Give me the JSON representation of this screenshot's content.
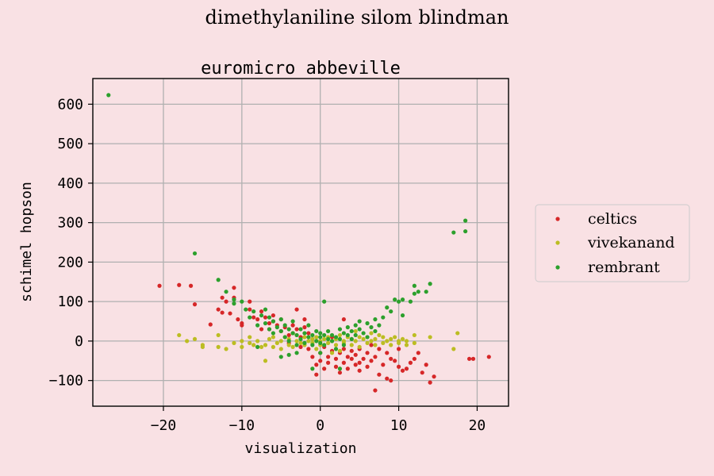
{
  "chart_data": {
    "type": "scatter",
    "suptitle": "dimethylaniline silom blindman",
    "title": "euromicro abbeville",
    "xlabel": "visualization",
    "ylabel": "schimel hopson",
    "xlim": [
      -29,
      24
    ],
    "ylim": [
      -165,
      665
    ],
    "xticks": [
      -20,
      -10,
      0,
      10,
      20
    ],
    "yticks": [
      -100,
      0,
      100,
      200,
      300,
      400,
      500,
      600
    ],
    "xtick_labels": [
      "−20",
      "−10",
      "0",
      "10",
      "20"
    ],
    "ytick_labels": [
      "−100",
      "0",
      "100",
      "200",
      "300",
      "400",
      "500",
      "600"
    ],
    "grid": true,
    "legend_position": "right",
    "background": "#f9e1e4",
    "series": [
      {
        "name": "celtics",
        "color": "#d62728",
        "points": [
          [
            -20.5,
            140
          ],
          [
            -18,
            142
          ],
          [
            -16.5,
            140
          ],
          [
            -16,
            93
          ],
          [
            -14,
            42
          ],
          [
            -13,
            80
          ],
          [
            -12.5,
            110
          ],
          [
            -12.5,
            72
          ],
          [
            -12,
            100
          ],
          [
            -11.5,
            70
          ],
          [
            -11,
            135
          ],
          [
            -11,
            110
          ],
          [
            -10.5,
            55
          ],
          [
            -10,
            45
          ],
          [
            -10,
            40
          ],
          [
            -9,
            100
          ],
          [
            -9,
            80
          ],
          [
            -8.5,
            60
          ],
          [
            -8,
            55
          ],
          [
            -7.5,
            75
          ],
          [
            -7,
            60
          ],
          [
            -6.5,
            45
          ],
          [
            -6.5,
            30
          ],
          [
            -6,
            65
          ],
          [
            -6,
            50
          ],
          [
            -5.5,
            40
          ],
          [
            -5,
            55
          ],
          [
            -5,
            25
          ],
          [
            -4.5,
            35
          ],
          [
            -4,
            15
          ],
          [
            -3.5,
            40
          ],
          [
            -3.5,
            20
          ],
          [
            -3,
            80
          ],
          [
            -3,
            30
          ],
          [
            -2.5,
            10
          ],
          [
            -2.5,
            -15
          ],
          [
            -2,
            35
          ],
          [
            -2,
            55
          ],
          [
            -1.5,
            20
          ],
          [
            -1.5,
            -20
          ],
          [
            -1,
            5
          ],
          [
            -1,
            -40
          ],
          [
            -0.5,
            -60
          ],
          [
            -0.5,
            -85
          ],
          [
            0,
            -30
          ],
          [
            0,
            -50
          ],
          [
            0.5,
            -70
          ],
          [
            0.5,
            -15
          ],
          [
            1,
            -40
          ],
          [
            1,
            -55
          ],
          [
            1.5,
            -25
          ],
          [
            2,
            -65
          ],
          [
            2,
            -45
          ],
          [
            2.5,
            -30
          ],
          [
            2.5,
            -80
          ],
          [
            3,
            -55
          ],
          [
            3,
            -20
          ],
          [
            3.5,
            -40
          ],
          [
            3.5,
            -70
          ],
          [
            4,
            -45
          ],
          [
            4,
            -25
          ],
          [
            4.5,
            -60
          ],
          [
            4.5,
            -35
          ],
          [
            5,
            -75
          ],
          [
            5,
            -55
          ],
          [
            5,
            -20
          ],
          [
            5.5,
            -45
          ],
          [
            6,
            -30
          ],
          [
            6,
            -65
          ],
          [
            6.5,
            -50
          ],
          [
            7,
            -40
          ],
          [
            7,
            -125
          ],
          [
            7.5,
            -20
          ],
          [
            7.5,
            -85
          ],
          [
            8,
            -60
          ],
          [
            8.5,
            -30
          ],
          [
            8.5,
            -95
          ],
          [
            9,
            -45
          ],
          [
            9,
            -100
          ],
          [
            9.5,
            -50
          ],
          [
            10,
            -20
          ],
          [
            10,
            -65
          ],
          [
            10.5,
            -75
          ],
          [
            11,
            -70
          ],
          [
            11.5,
            -55
          ],
          [
            12,
            -45
          ],
          [
            12.5,
            -30
          ],
          [
            13,
            -80
          ],
          [
            13.5,
            -60
          ],
          [
            14,
            -105
          ],
          [
            14.5,
            -90
          ],
          [
            19,
            -45
          ],
          [
            19.5,
            -45
          ],
          [
            21.5,
            -40
          ],
          [
            3,
            55
          ],
          [
            -4,
            -5
          ],
          [
            1.5,
            10
          ],
          [
            6.5,
            -10
          ],
          [
            -7.5,
            30
          ]
        ]
      },
      {
        "name": "vivekanand",
        "color": "#bcbd22",
        "points": [
          [
            -18,
            15
          ],
          [
            -17,
            0
          ],
          [
            -16,
            5
          ],
          [
            -15,
            -10
          ],
          [
            -15,
            -15
          ],
          [
            -13,
            15
          ],
          [
            -13,
            -15
          ],
          [
            -12,
            -20
          ],
          [
            -11,
            -5
          ],
          [
            -10,
            -15
          ],
          [
            -10,
            0
          ],
          [
            -9,
            -5
          ],
          [
            -9,
            10
          ],
          [
            -8.5,
            -10
          ],
          [
            -8,
            0
          ],
          [
            -7.5,
            -15
          ],
          [
            -7,
            -50
          ],
          [
            -7,
            -10
          ],
          [
            -6.5,
            5
          ],
          [
            -6,
            -15
          ],
          [
            -6,
            10
          ],
          [
            -5.5,
            -5
          ],
          [
            -5,
            -20
          ],
          [
            -5,
            0
          ],
          [
            -4.5,
            10
          ],
          [
            -4,
            -10
          ],
          [
            -4,
            5
          ],
          [
            -3.5,
            -15
          ],
          [
            -3,
            0
          ],
          [
            -3,
            15
          ],
          [
            -2.5,
            -5
          ],
          [
            -2,
            10
          ],
          [
            -2,
            -10
          ],
          [
            -1.5,
            0
          ],
          [
            -1,
            5
          ],
          [
            -1,
            -5
          ],
          [
            -0.5,
            10
          ],
          [
            0,
            0
          ],
          [
            0,
            -10
          ],
          [
            0.5,
            5
          ],
          [
            1,
            -5
          ],
          [
            1,
            10
          ],
          [
            1.5,
            0
          ],
          [
            2,
            -10
          ],
          [
            2,
            5
          ],
          [
            2.5,
            15
          ],
          [
            3,
            0
          ],
          [
            3,
            -5
          ],
          [
            3.5,
            10
          ],
          [
            4,
            -10
          ],
          [
            4,
            5
          ],
          [
            4.5,
            0
          ],
          [
            5,
            10
          ],
          [
            5,
            -15
          ],
          [
            5.5,
            5
          ],
          [
            6,
            -5
          ],
          [
            6,
            10
          ],
          [
            6.5,
            0
          ],
          [
            7,
            -10
          ],
          [
            7,
            5
          ],
          [
            7.5,
            15
          ],
          [
            8,
            -5
          ],
          [
            8,
            10
          ],
          [
            8.5,
            0
          ],
          [
            9,
            -10
          ],
          [
            9,
            5
          ],
          [
            9.5,
            10
          ],
          [
            10,
            -5
          ],
          [
            10,
            0
          ],
          [
            10.5,
            5
          ],
          [
            11,
            -10
          ],
          [
            11,
            0
          ],
          [
            12,
            -5
          ],
          [
            12,
            15
          ],
          [
            14,
            10
          ],
          [
            17,
            -20
          ],
          [
            17.5,
            20
          ],
          [
            -0.5,
            -20
          ],
          [
            2.5,
            -25
          ],
          [
            -3.5,
            20
          ],
          [
            6.5,
            20
          ],
          [
            4.5,
            25
          ],
          [
            1.5,
            -30
          ]
        ]
      },
      {
        "name": "rembrant",
        "color": "#2ca02c",
        "points": [
          [
            -27,
            623
          ],
          [
            -16,
            222
          ],
          [
            -13,
            155
          ],
          [
            -12,
            125
          ],
          [
            -11,
            105
          ],
          [
            -11,
            95
          ],
          [
            -10,
            100
          ],
          [
            -9.5,
            80
          ],
          [
            -9,
            60
          ],
          [
            -8.5,
            75
          ],
          [
            -8,
            40
          ],
          [
            -7.5,
            65
          ],
          [
            -7,
            80
          ],
          [
            -7,
            45
          ],
          [
            -6.5,
            30
          ],
          [
            -6.5,
            60
          ],
          [
            -6,
            20
          ],
          [
            -6,
            50
          ],
          [
            -5.5,
            35
          ],
          [
            -5,
            25
          ],
          [
            -5,
            55
          ],
          [
            -4.5,
            10
          ],
          [
            -4.5,
            40
          ],
          [
            -4,
            30
          ],
          [
            -4,
            0
          ],
          [
            -3.5,
            20
          ],
          [
            -3.5,
            50
          ],
          [
            -3,
            15
          ],
          [
            -3,
            -10
          ],
          [
            -2.5,
            30
          ],
          [
            -2.5,
            5
          ],
          [
            -2,
            20
          ],
          [
            -2,
            -5
          ],
          [
            -1.5,
            10
          ],
          [
            -1.5,
            40
          ],
          [
            -1,
            15
          ],
          [
            -1,
            -10
          ],
          [
            -0.5,
            25
          ],
          [
            -0.5,
            0
          ],
          [
            0,
            10
          ],
          [
            0,
            -5
          ],
          [
            0,
            20
          ],
          [
            0,
            -30
          ],
          [
            0.5,
            15
          ],
          [
            0.5,
            -10
          ],
          [
            1,
            5
          ],
          [
            1,
            25
          ],
          [
            1.5,
            0
          ],
          [
            1.5,
            15
          ],
          [
            2,
            10
          ],
          [
            2,
            -20
          ],
          [
            2.5,
            30
          ],
          [
            2.5,
            5
          ],
          [
            3,
            20
          ],
          [
            3,
            -10
          ],
          [
            3.5,
            15
          ],
          [
            3.5,
            35
          ],
          [
            4,
            25
          ],
          [
            4,
            5
          ],
          [
            4.5,
            40
          ],
          [
            4.5,
            15
          ],
          [
            5,
            30
          ],
          [
            5,
            50
          ],
          [
            5.5,
            20
          ],
          [
            6,
            45
          ],
          [
            6,
            10
          ],
          [
            6.5,
            35
          ],
          [
            7,
            55
          ],
          [
            7,
            25
          ],
          [
            7.5,
            40
          ],
          [
            8,
            60
          ],
          [
            8.5,
            85
          ],
          [
            9,
            75
          ],
          [
            9.5,
            105
          ],
          [
            10,
            100
          ],
          [
            10.5,
            65
          ],
          [
            10.5,
            105
          ],
          [
            11.5,
            100
          ],
          [
            12,
            140
          ],
          [
            12,
            120
          ],
          [
            12.5,
            125
          ],
          [
            13.5,
            125
          ],
          [
            14,
            145
          ],
          [
            17,
            275
          ],
          [
            18.5,
            305
          ],
          [
            18.5,
            278
          ],
          [
            -1,
            -70
          ],
          [
            2.5,
            -70
          ],
          [
            -5,
            -40
          ],
          [
            -3,
            -30
          ],
          [
            0.5,
            100
          ],
          [
            -8,
            -15
          ],
          [
            -4,
            -35
          ]
        ]
      }
    ]
  }
}
